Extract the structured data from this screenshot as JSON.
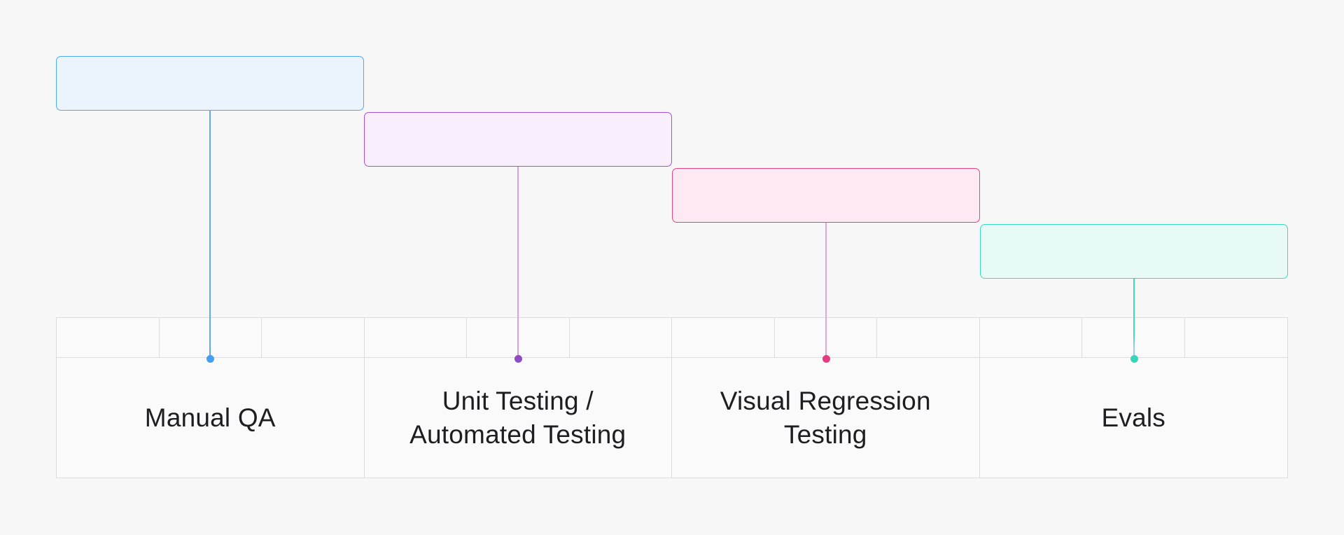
{
  "colors": {
    "background": "#f7f7f8",
    "table_border": "#dcdcde",
    "table_fill": "#fafafa",
    "text": "#1e1e20"
  },
  "timeline": {
    "columns": 4,
    "header_subcells_per_column": 3,
    "stages": [
      {
        "id": "manual-qa",
        "label": "Manual QA",
        "box_border": "#4fa8f4",
        "box_fill": "#ebf3fd",
        "line_color": "#5fa9f1",
        "dot_color": "#41a0f1"
      },
      {
        "id": "unit-automated-testing",
        "label": "Unit Testing /\nAutomated Testing",
        "box_border": "#a152d4",
        "box_fill": "#f8eefc",
        "line_color": "#d2a3e2",
        "dot_color": "#8f4bc7"
      },
      {
        "id": "visual-regression-testing",
        "label": "Visual Regression\nTesting",
        "box_border": "#e5447f",
        "box_fill": "#fce9f3",
        "line_color": "#e0a6da",
        "dot_color": "#e83a80"
      },
      {
        "id": "evals",
        "label": "Evals",
        "box_border": "#3bd8be",
        "box_fill": "#e8faf6",
        "line_color": "#3ed9bf",
        "line_color_end": "#a9c6f1",
        "dot_color": "#36d6b8"
      }
    ]
  }
}
